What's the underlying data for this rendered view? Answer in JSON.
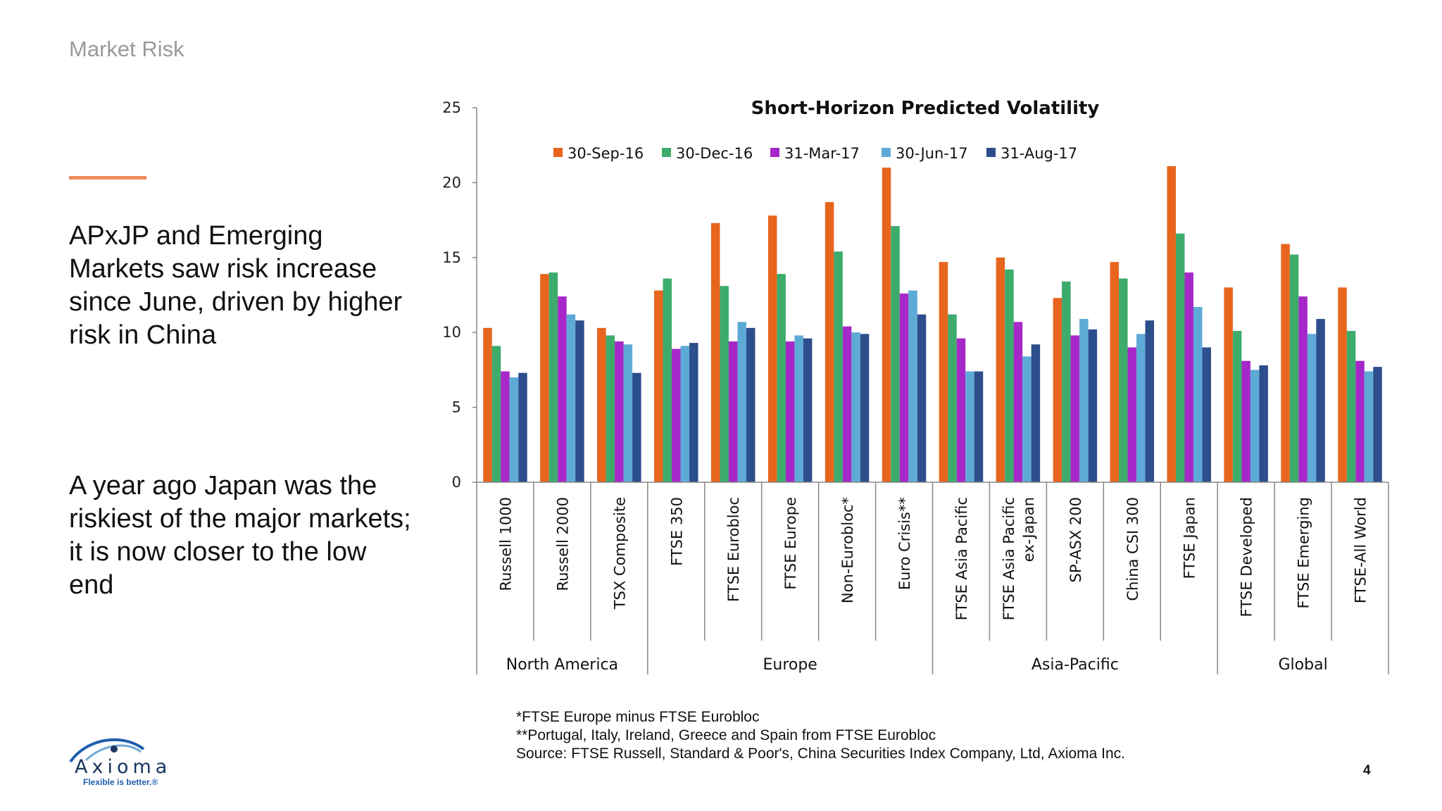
{
  "slide": {
    "section_title": "Market Risk",
    "bullets": [
      "APxJP and Emerging Markets saw risk increase since June, driven by higher risk in China",
      "A year ago Japan was the riskiest of the major markets; it is now closer to the low end"
    ],
    "notes": [
      "*FTSE Europe minus FTSE Eurobloc",
      "**Portugal, Italy, Ireland, Greece and Spain from FTSE Eurobloc",
      "Source: FTSE Russell, Standard & Poor's, China Securities Index Company, Ltd, Axioma Inc."
    ],
    "page_number": "4",
    "logo": {
      "name": "Axioma",
      "tagline": "Flexible is better.®"
    },
    "colors": {
      "accent": "#f08b5f",
      "logo": "#1a3560"
    }
  },
  "chart_data": {
    "type": "bar",
    "title": "Short-Horizon Predicted Volatility",
    "xlabel": "",
    "ylabel": "",
    "ylim": [
      0,
      25
    ],
    "yticks": [
      0,
      5,
      10,
      15,
      20,
      25
    ],
    "grid": false,
    "legend_position": "top",
    "categories": [
      "Russell 1000",
      "Russell 2000",
      "TSX Composite",
      "FTSE 350",
      "FTSE Eurobloc",
      "FTSE Europe",
      "Non-Eurobloc*",
      "Euro Crisis**",
      "FTSE Asia Pacific",
      "FTSE Asia Pacific ex-Japan",
      "SP-ASX 200",
      "China CSI 300",
      "FTSE Japan",
      "FTSE Developed",
      "FTSE Emerging",
      "FTSE-All World"
    ],
    "groups": [
      {
        "label": "North America",
        "count": 3
      },
      {
        "label": "Europe",
        "count": 5
      },
      {
        "label": "Asia-Pacific",
        "count": 5
      },
      {
        "label": "Global",
        "count": 3
      }
    ],
    "series": [
      {
        "name": "30-Sep-16",
        "color": "#e8651e",
        "values": [
          10.3,
          13.9,
          10.3,
          12.8,
          17.3,
          17.8,
          18.7,
          21.0,
          14.7,
          15.0,
          12.3,
          14.7,
          21.1,
          13.0,
          15.9,
          13.0
        ]
      },
      {
        "name": "30-Dec-16",
        "color": "#3dab6b",
        "values": [
          9.1,
          14.0,
          9.8,
          13.6,
          13.1,
          13.9,
          15.4,
          17.1,
          11.2,
          14.2,
          13.4,
          13.6,
          16.6,
          10.1,
          15.2,
          10.1
        ]
      },
      {
        "name": "31-Mar-17",
        "color": "#a628c8",
        "values": [
          7.4,
          12.4,
          9.4,
          8.9,
          9.4,
          9.4,
          10.4,
          12.6,
          9.6,
          10.7,
          9.8,
          9.0,
          14.0,
          8.1,
          12.4,
          8.1
        ]
      },
      {
        "name": "30-Jun-17",
        "color": "#5eaad6",
        "values": [
          7.0,
          11.2,
          9.2,
          9.1,
          10.7,
          9.8,
          10.0,
          12.8,
          7.4,
          8.4,
          10.9,
          9.9,
          11.7,
          7.5,
          9.9,
          7.4
        ]
      },
      {
        "name": "31-Aug-17",
        "color": "#2d4e8c",
        "values": [
          7.3,
          10.8,
          7.3,
          9.3,
          10.3,
          9.6,
          9.9,
          11.2,
          7.4,
          9.2,
          10.2,
          10.8,
          9.0,
          7.8,
          10.9,
          7.7
        ]
      }
    ]
  }
}
